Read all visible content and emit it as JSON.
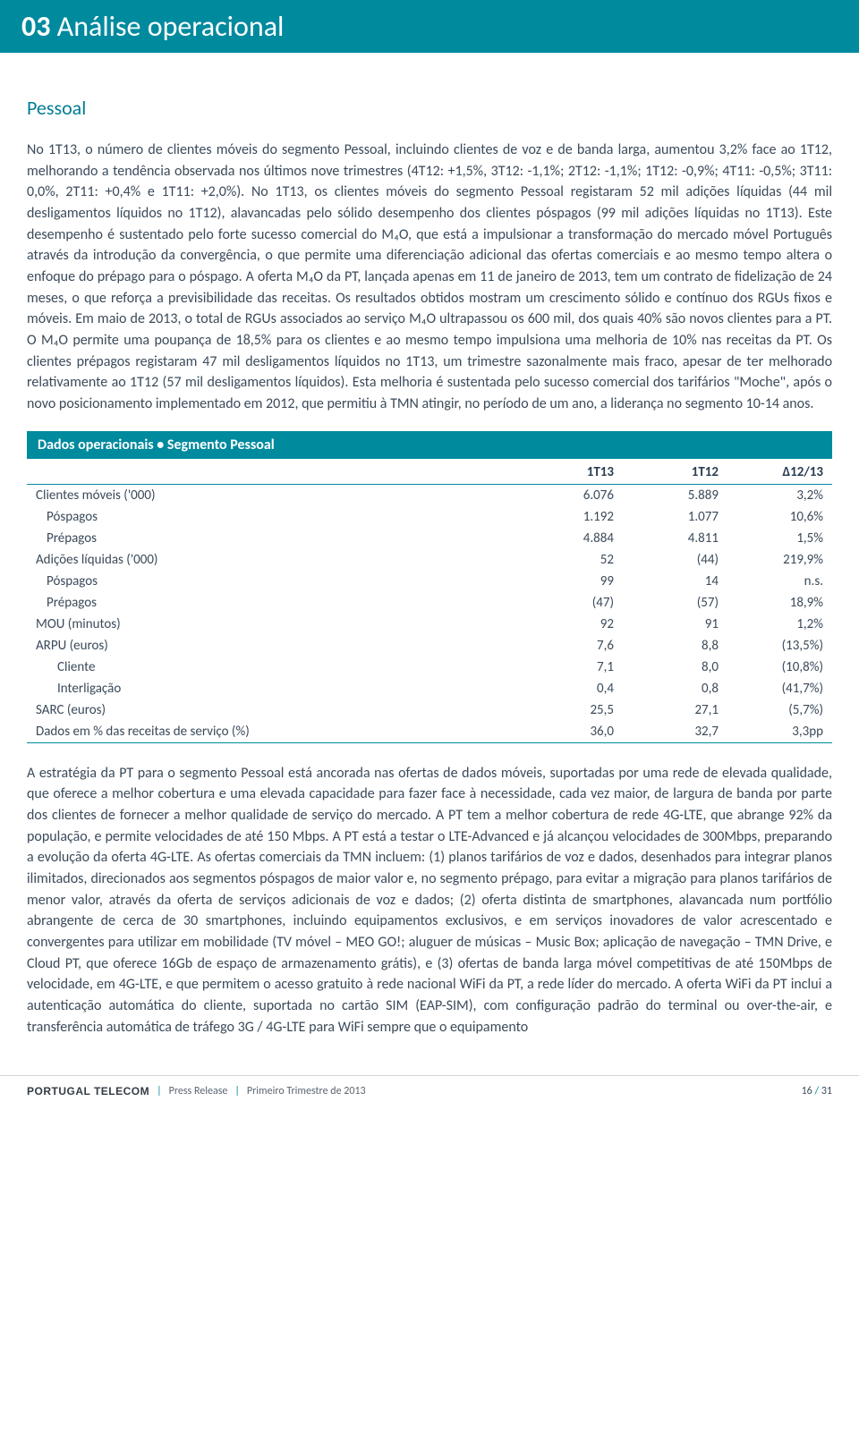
{
  "header": {
    "number": "03",
    "title": "Análise operacional"
  },
  "subsection": "Pessoal",
  "para1": "No 1T13, o número de clientes móveis do segmento Pessoal, incluindo clientes de voz e de banda larga, aumentou 3,2% face ao 1T12, melhorando a tendência observada nos últimos nove trimestres (4T12: +1,5%, 3T12: -1,1%; 2T12: -1,1%; 1T12: -0,9%; 4T11: -0,5%; 3T11: 0,0%, 2T11: +0,4% e 1T11: +2,0%). No 1T13, os clientes móveis do segmento Pessoal registaram 52 mil adições líquidas (44 mil desligamentos líquidos no 1T12), alavancadas pelo sólido desempenho dos clientes póspagos (99 mil adições líquidas no 1T13). Este desempenho é sustentado pelo forte sucesso comercial do M₄O, que está a impulsionar a transformação do mercado móvel Português através da introdução da convergência, o que permite uma diferenciação adicional das ofertas comerciais e ao mesmo tempo altera o enfoque do prépago para o póspago. A oferta M₄O da PT, lançada apenas em 11 de janeiro de 2013, tem um contrato de fidelização de 24 meses, o que reforça a previsibilidade das receitas. Os resultados obtidos mostram um crescimento sólido e contínuo dos RGUs fixos e móveis. Em maio de 2013, o total de RGUs associados ao serviço M₄O ultrapassou os 600 mil, dos quais 40% são novos clientes para a PT. O M₄O permite uma poupança de 18,5% para os clientes e ao mesmo tempo impulsiona uma melhoria de 10% nas receitas da PT. Os clientes prépagos registaram 47 mil desligamentos líquidos no 1T13, um trimestre sazonalmente mais fraco, apesar de ter melhorado relativamente ao 1T12 (57 mil desligamentos líquidos). Esta melhoria é sustentada pelo sucesso comercial dos tarifários \"Moche\", após o novo posicionamento implementado em 2012, que permitiu à TMN atingir, no período de um ano, a liderança no segmento 10-14 anos.",
  "table": {
    "title": "Dados operacionais • Segmento Pessoal",
    "columns": [
      "",
      "1T13",
      "1T12",
      "Δ12/13"
    ],
    "rows": [
      {
        "label": "Clientes móveis ('000)",
        "indent": 0,
        "v1": "6.076",
        "v2": "5.889",
        "d": "3,2%"
      },
      {
        "label": "Póspagos",
        "indent": 1,
        "v1": "1.192",
        "v2": "1.077",
        "d": "10,6%"
      },
      {
        "label": "Prépagos",
        "indent": 1,
        "v1": "4.884",
        "v2": "4.811",
        "d": "1,5%"
      },
      {
        "label": "Adições líquidas ('000)",
        "indent": 0,
        "v1": "52",
        "v2": "(44)",
        "d": "219,9%"
      },
      {
        "label": "Póspagos",
        "indent": 1,
        "v1": "99",
        "v2": "14",
        "d": "n.s."
      },
      {
        "label": "Prépagos",
        "indent": 1,
        "v1": "(47)",
        "v2": "(57)",
        "d": "18,9%"
      },
      {
        "label": "MOU (minutos)",
        "indent": 0,
        "v1": "92",
        "v2": "91",
        "d": "1,2%"
      },
      {
        "label": "ARPU (euros)",
        "indent": 0,
        "v1": "7,6",
        "v2": "8,8",
        "d": "(13,5%)"
      },
      {
        "label": "Cliente",
        "indent": 2,
        "v1": "7,1",
        "v2": "8,0",
        "d": "(10,8%)"
      },
      {
        "label": "Interligação",
        "indent": 2,
        "v1": "0,4",
        "v2": "0,8",
        "d": "(41,7%)"
      },
      {
        "label": "SARC (euros)",
        "indent": 0,
        "v1": "25,5",
        "v2": "27,1",
        "d": "(5,7%)"
      },
      {
        "label": "Dados em % das receitas de serviço (%)",
        "indent": 0,
        "v1": "36,0",
        "v2": "32,7",
        "d": "3,3pp"
      }
    ]
  },
  "para2": "A estratégia da PT para o segmento Pessoal está ancorada nas ofertas de dados móveis, suportadas por uma rede de elevada qualidade, que oferece a melhor cobertura e uma elevada capacidade para fazer face à necessidade, cada vez maior, de largura de banda por parte dos clientes de fornecer a melhor qualidade de serviço do mercado. A PT tem a melhor cobertura de rede 4G-LTE, que abrange 92% da população, e permite velocidades de até 150 Mbps. A PT está a testar o LTE-Advanced e já alcançou velocidades de 300Mbps, preparando a evolução da oferta 4G-LTE. As ofertas comerciais da TMN incluem: (1) planos tarifários de voz e dados, desenhados para integrar planos ilimitados, direcionados aos segmentos póspagos de maior valor e, no segmento prépago, para evitar a migração para planos tarifários de menor valor, através da oferta de serviços adicionais de voz e dados; (2) oferta distinta de smartphones, alavancada num portfólio abrangente de cerca de 30 smartphones, incluindo equipamentos exclusivos, e em serviços inovadores de valor acrescentado e convergentes para utilizar em mobilidade (TV móvel – MEO GO!; aluguer de músicas – Music Box; aplicação de navegação – TMN Drive, e Cloud PT, que oferece 16Gb de espaço de armazenamento grátis), e (3) ofertas de banda larga móvel competitivas de até 150Mbps de velocidade, em 4G-LTE, e que permitem o acesso gratuito à rede nacional WiFi da PT, a rede líder do mercado. A oferta WiFi da PT inclui a autenticação automática do cliente, suportada no cartão SIM (EAP-SIM), com configuração padrão do terminal ou over-the-air, e transferência automática de tráfego 3G / 4G-LTE para WiFi sempre que o equipamento",
  "footer": {
    "brand": "PORTUGAL TELECOM",
    "doc": "Press Release",
    "period": "Primeiro Trimestre de 2013",
    "page": "16",
    "total": "31"
  }
}
